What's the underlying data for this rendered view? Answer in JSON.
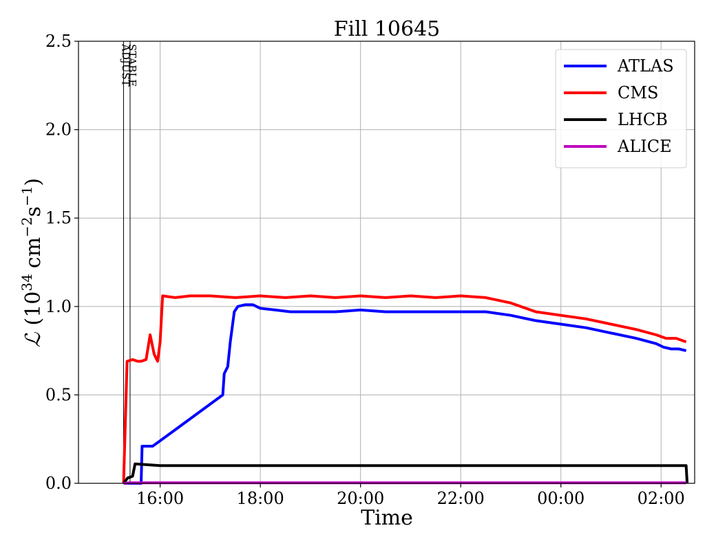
{
  "chart_data": {
    "type": "line",
    "title": "Fill 10645",
    "xlabel": "Time",
    "ylabel": "ℒ (10³⁴ cm⁻²s⁻¹)",
    "ylabel_parts": {
      "symbol": "ℒ",
      "base": "10",
      "exp": "34",
      "unit": "cm",
      "unit_exp": "−2",
      "s": "s",
      "s_exp": "−1"
    },
    "x_units": "hours since 15:00 (ticks labeled as clock time)",
    "xlim": [
      14.37,
      26.67
    ],
    "ylim": [
      0,
      2.5
    ],
    "grid": true,
    "legend_position": "top-right",
    "x_ticks": [
      {
        "value": 16,
        "label": "16:00"
      },
      {
        "value": 18,
        "label": "18:00"
      },
      {
        "value": 20,
        "label": "20:00"
      },
      {
        "value": 22,
        "label": "22:00"
      },
      {
        "value": 24,
        "label": "00:00"
      },
      {
        "value": 26,
        "label": "02:00"
      }
    ],
    "y_ticks": [
      {
        "value": 0.0,
        "label": "0.0"
      },
      {
        "value": 0.5,
        "label": "0.5"
      },
      {
        "value": 1.0,
        "label": "1.0"
      },
      {
        "value": 1.5,
        "label": "1.5"
      },
      {
        "value": 2.0,
        "label": "2.0"
      },
      {
        "value": 2.5,
        "label": "2.5"
      }
    ],
    "phase_markers": [
      {
        "label": "ADJUST",
        "x": 15.27
      },
      {
        "label": "STABLE",
        "x": 15.4
      }
    ],
    "series": [
      {
        "name": "ATLAS",
        "color": "#0000ff",
        "points": [
          [
            15.27,
            0.0
          ],
          [
            15.4,
            0.0
          ],
          [
            15.62,
            0.0
          ],
          [
            15.64,
            0.21
          ],
          [
            15.85,
            0.21
          ],
          [
            15.95,
            0.23
          ],
          [
            17.25,
            0.5
          ],
          [
            17.28,
            0.62
          ],
          [
            17.35,
            0.66
          ],
          [
            17.4,
            0.8
          ],
          [
            17.48,
            0.97
          ],
          [
            17.55,
            1.0
          ],
          [
            17.7,
            1.01
          ],
          [
            17.85,
            1.01
          ],
          [
            18.0,
            0.99
          ],
          [
            18.3,
            0.98
          ],
          [
            18.6,
            0.97
          ],
          [
            19.0,
            0.97
          ],
          [
            19.5,
            0.97
          ],
          [
            20.0,
            0.98
          ],
          [
            20.5,
            0.97
          ],
          [
            21.0,
            0.97
          ],
          [
            21.5,
            0.97
          ],
          [
            22.0,
            0.97
          ],
          [
            22.5,
            0.97
          ],
          [
            23.0,
            0.95
          ],
          [
            23.5,
            0.92
          ],
          [
            24.0,
            0.9
          ],
          [
            24.5,
            0.88
          ],
          [
            25.0,
            0.85
          ],
          [
            25.5,
            0.82
          ],
          [
            25.9,
            0.79
          ],
          [
            26.05,
            0.77
          ],
          [
            26.2,
            0.76
          ],
          [
            26.35,
            0.76
          ],
          [
            26.5,
            0.75
          ]
        ]
      },
      {
        "name": "CMS",
        "color": "#ff0000",
        "points": [
          [
            15.27,
            0.0
          ],
          [
            15.34,
            0.69
          ],
          [
            15.45,
            0.7
          ],
          [
            15.55,
            0.69
          ],
          [
            15.62,
            0.69
          ],
          [
            15.72,
            0.7
          ],
          [
            15.8,
            0.84
          ],
          [
            15.88,
            0.73
          ],
          [
            15.95,
            0.69
          ],
          [
            16.0,
            0.8
          ],
          [
            16.05,
            1.06
          ],
          [
            16.3,
            1.05
          ],
          [
            16.6,
            1.06
          ],
          [
            17.0,
            1.06
          ],
          [
            17.5,
            1.05
          ],
          [
            18.0,
            1.06
          ],
          [
            18.5,
            1.05
          ],
          [
            19.0,
            1.06
          ],
          [
            19.5,
            1.05
          ],
          [
            20.0,
            1.06
          ],
          [
            20.5,
            1.05
          ],
          [
            21.0,
            1.06
          ],
          [
            21.5,
            1.05
          ],
          [
            22.0,
            1.06
          ],
          [
            22.5,
            1.05
          ],
          [
            23.0,
            1.02
          ],
          [
            23.5,
            0.97
          ],
          [
            24.0,
            0.95
          ],
          [
            24.5,
            0.93
          ],
          [
            25.0,
            0.9
          ],
          [
            25.5,
            0.87
          ],
          [
            25.9,
            0.84
          ],
          [
            26.1,
            0.82
          ],
          [
            26.3,
            0.82
          ],
          [
            26.5,
            0.8
          ]
        ]
      },
      {
        "name": "LHCB",
        "color": "#000000",
        "points": [
          [
            15.27,
            0.0
          ],
          [
            15.35,
            0.03
          ],
          [
            15.45,
            0.04
          ],
          [
            15.5,
            0.11
          ],
          [
            16.0,
            0.1
          ],
          [
            17.0,
            0.1
          ],
          [
            18.0,
            0.1
          ],
          [
            19.0,
            0.1
          ],
          [
            20.0,
            0.1
          ],
          [
            21.0,
            0.1
          ],
          [
            22.0,
            0.1
          ],
          [
            23.0,
            0.1
          ],
          [
            24.0,
            0.1
          ],
          [
            25.0,
            0.1
          ],
          [
            26.0,
            0.1
          ],
          [
            26.5,
            0.1
          ],
          [
            26.52,
            0.0
          ]
        ]
      },
      {
        "name": "ALICE",
        "color": "#bf00bf",
        "points": [
          [
            15.27,
            0.0
          ],
          [
            15.4,
            0.003
          ],
          [
            16.0,
            0.003
          ],
          [
            20.0,
            0.003
          ],
          [
            24.0,
            0.003
          ],
          [
            26.5,
            0.003
          ]
        ]
      }
    ]
  }
}
